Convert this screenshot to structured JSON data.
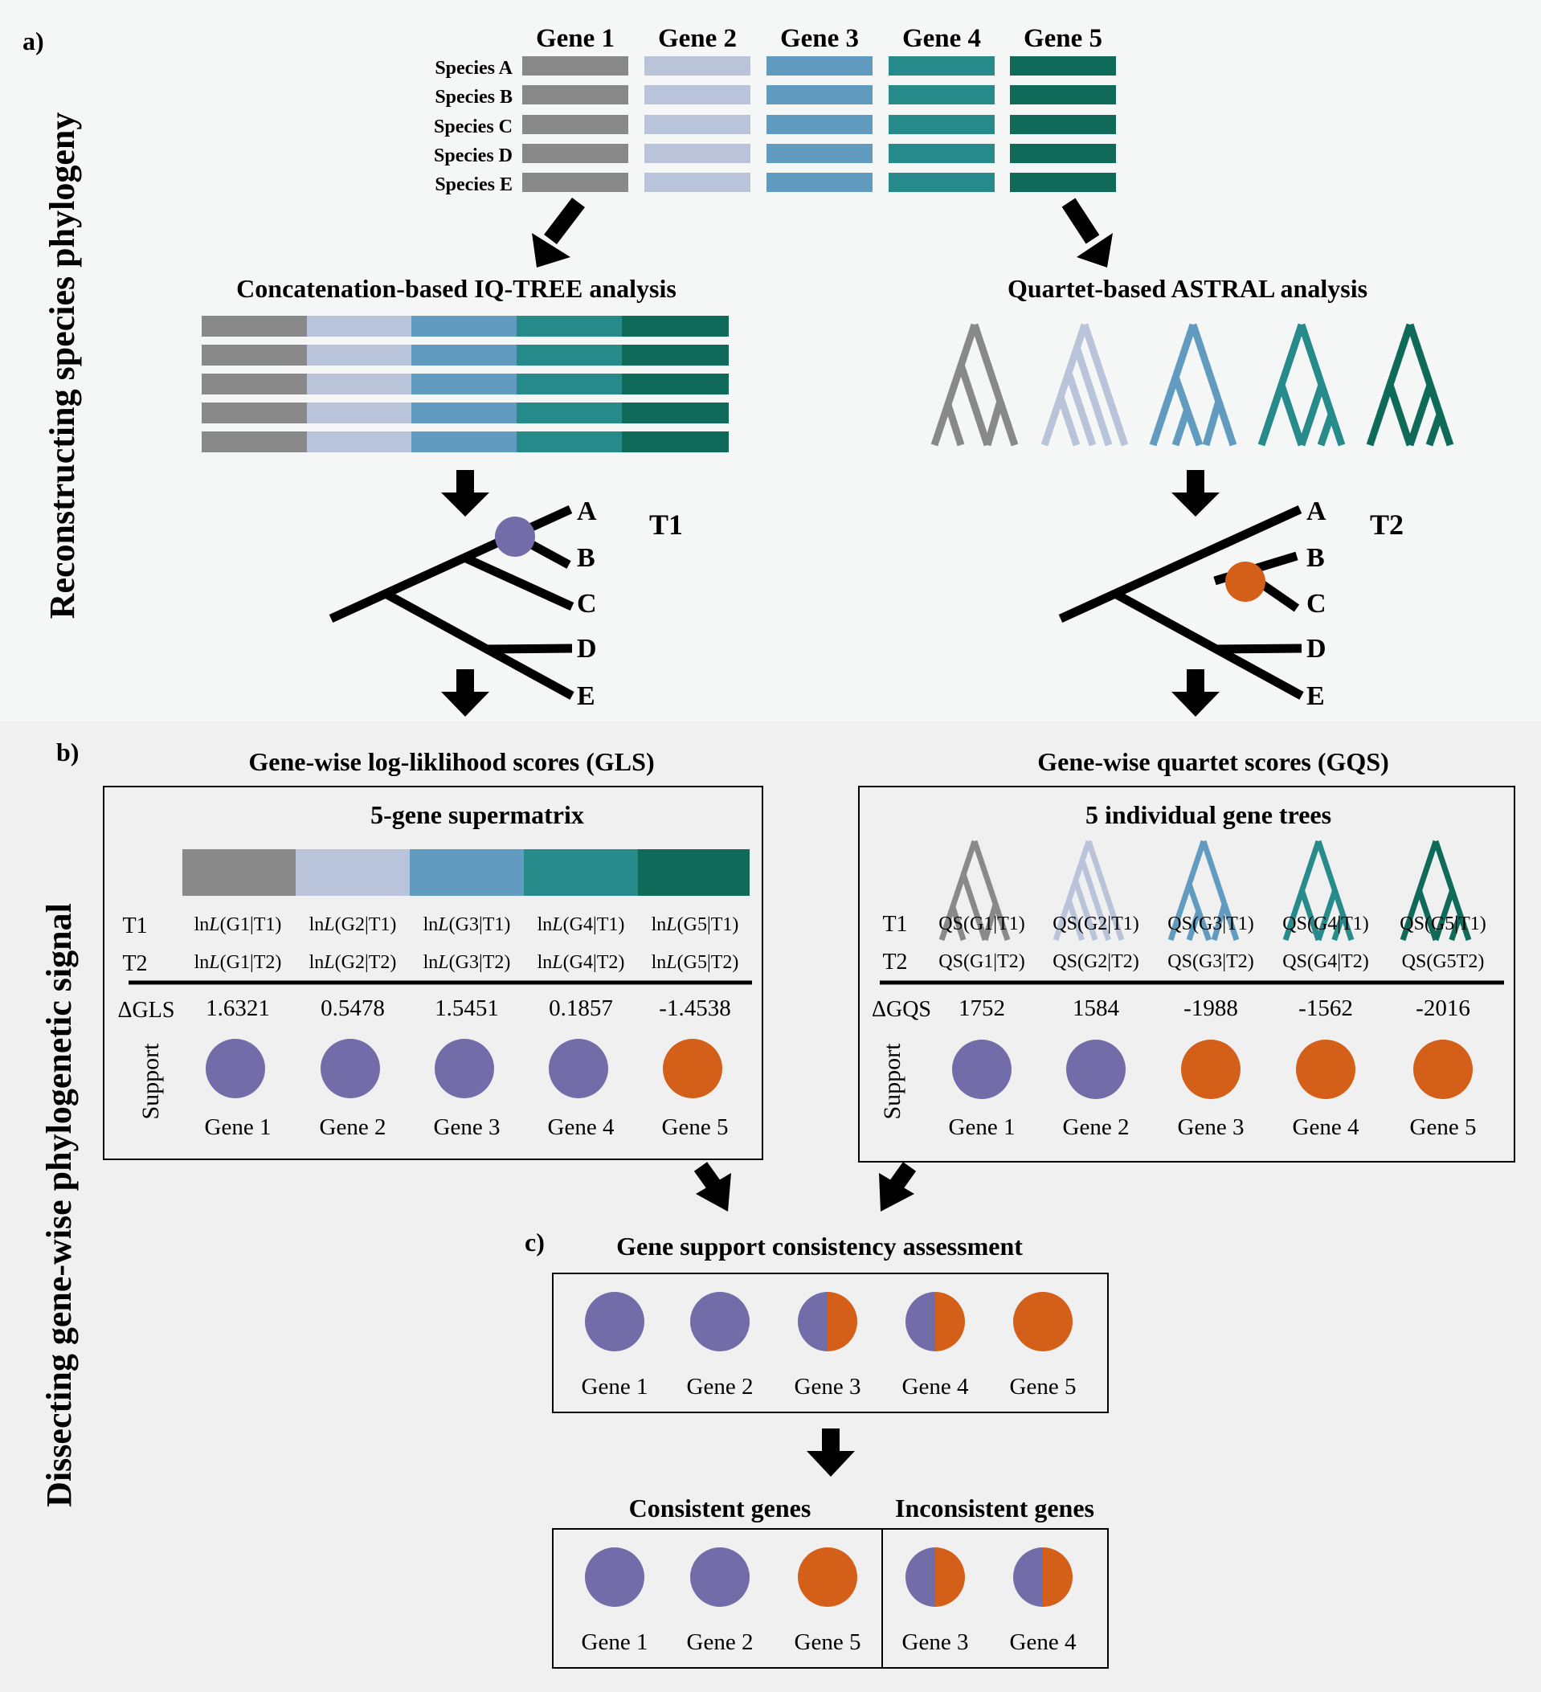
{
  "colors": {
    "gene1": "#898989",
    "gene2": "#b9c4da",
    "gene3": "#619bbf",
    "gene4": "#278b8c",
    "gene5": "#0f6a59",
    "t1_support": "#726ca9",
    "t2_support": "#d35f18",
    "panel_a_bg": "#f5f7f6",
    "panel_b_bg": "#f0f0f0"
  },
  "panel_a": {
    "letter": "a)",
    "side_title": "Reconstructing species phylogeny",
    "genes": [
      "Gene 1",
      "Gene 2",
      "Gene 3",
      "Gene 4",
      "Gene 5"
    ],
    "species": [
      "Species A",
      "Species B",
      "Species C",
      "Species D",
      "Species E"
    ],
    "left_title": "Concatenation-based IQ-TREE analysis",
    "right_title": "Quartet-based ASTRAL analysis",
    "tree1": {
      "label": "T1",
      "tips": [
        "A",
        "B",
        "C",
        "D",
        "E"
      ]
    },
    "tree2": {
      "label": "T2",
      "tips": [
        "A",
        "B",
        "C",
        "D",
        "E"
      ]
    }
  },
  "panel_b": {
    "letter": "b)",
    "side_title": "Dissecting gene-wise phylogenetic signal",
    "gls": {
      "title": "Gene-wise log-liklihood scores (GLS)",
      "box_title": "5-gene supermatrix",
      "row1_label": "T1",
      "row2_label": "T2",
      "row1": [
        {
          "pre": "ln",
          "it": "L",
          "post": "(G1|T1)"
        },
        {
          "pre": "ln",
          "it": "L",
          "post": "(G2|T1)"
        },
        {
          "pre": "ln",
          "it": "L",
          "post": "(G3|T1)"
        },
        {
          "pre": "ln",
          "it": "L",
          "post": "(G4|T1)"
        },
        {
          "pre": "ln",
          "it": "L",
          "post": "(G5|T1)"
        }
      ],
      "row2": [
        {
          "pre": "ln",
          "it": "L",
          "post": "(G1|T2)"
        },
        {
          "pre": "ln",
          "it": "L",
          "post": "(G2|T2)"
        },
        {
          "pre": "ln",
          "it": "L",
          "post": "(G3|T2)"
        },
        {
          "pre": "ln",
          "it": "L",
          "post": "(G4|T2)"
        },
        {
          "pre": "ln",
          "it": "L",
          "post": "(G5|T2)"
        }
      ],
      "delta_label": "ΔGLS",
      "delta_values": [
        "1.6321",
        "0.5478",
        "1.5451",
        "0.1857",
        "-1.4538"
      ],
      "support_label": "Support",
      "support": [
        "T1",
        "T1",
        "T1",
        "T1",
        "T2"
      ],
      "gene_labels": [
        "Gene 1",
        "Gene 2",
        "Gene 3",
        "Gene 4",
        "Gene 5"
      ]
    },
    "gqs": {
      "title": "Gene-wise quartet scores (GQS)",
      "box_title": "5 individual gene trees",
      "row1_label": "T1",
      "row2_label": "T2",
      "row1": [
        "QS(G1|T1)",
        "QS(G2|T1)",
        "QS(G3|T1)",
        "QS(G4|T1)",
        "QS(G5|T1)"
      ],
      "row2": [
        "QS(G1|T2)",
        "QS(G2|T2)",
        "QS(G3|T2)",
        "QS(G4|T2)",
        "QS(G5T2)"
      ],
      "delta_label": "ΔGQS",
      "delta_values": [
        "1752",
        "1584",
        "-1988",
        "-1562",
        "-2016"
      ],
      "support_label": "Support",
      "support": [
        "T1",
        "T1",
        "T2",
        "T2",
        "T2"
      ],
      "gene_labels": [
        "Gene 1",
        "Gene 2",
        "Gene 3",
        "Gene 4",
        "Gene 5"
      ]
    }
  },
  "panel_c": {
    "letter": "c)",
    "title": "Gene support consistency assessment",
    "assessment": [
      {
        "gene": "Gene 1",
        "state": "T1"
      },
      {
        "gene": "Gene 2",
        "state": "T1"
      },
      {
        "gene": "Gene 3",
        "state": "mixed"
      },
      {
        "gene": "Gene 4",
        "state": "mixed"
      },
      {
        "gene": "Gene 5",
        "state": "T2"
      }
    ],
    "consistent_title": "Consistent genes",
    "inconsistent_title": "Inconsistent genes",
    "consistent": [
      {
        "gene": "Gene 1",
        "state": "T1"
      },
      {
        "gene": "Gene 2",
        "state": "T1"
      },
      {
        "gene": "Gene 5",
        "state": "T2"
      }
    ],
    "inconsistent": [
      {
        "gene": "Gene 3",
        "state": "mixed"
      },
      {
        "gene": "Gene 4",
        "state": "mixed"
      }
    ]
  }
}
